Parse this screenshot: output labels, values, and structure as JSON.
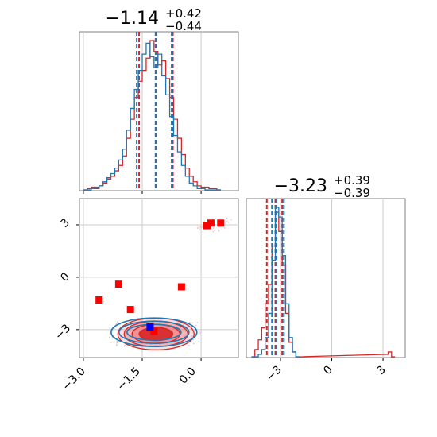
{
  "colors": {
    "red": "#d62728",
    "red_fill": "#f08080",
    "blue": "#1f77b4",
    "marker_blue": "#0000ff",
    "marker_red": "#ff0000",
    "grid": "#cccccc",
    "axes": "#808080"
  },
  "chart_data": [
    {
      "panel": "top-left",
      "type": "histogram",
      "title": {
        "main": "−1.14",
        "sup": "+0.42",
        "sub": "−0.44"
      },
      "xlim": [
        -3.1,
        0.95
      ],
      "x_ticks": [
        -3.0,
        -1.5,
        0.0
      ],
      "grid": true,
      "series": [
        {
          "color": "red",
          "dashed_lines": [
            -1.58,
            -1.14,
            -0.72
          ],
          "bins": [
            -2.95,
            -2.85,
            -2.75,
            -2.65,
            -2.55,
            -2.45,
            -2.35,
            -2.25,
            -2.15,
            -2.05,
            -1.95,
            -1.85,
            -1.75,
            -1.65,
            -1.55,
            -1.45,
            -1.35,
            -1.25,
            -1.15,
            -1.05,
            -0.95,
            -0.85,
            -0.75,
            -0.65,
            -0.55,
            -0.45,
            -0.35,
            -0.25,
            -0.15,
            -0.05,
            0.05,
            0.15,
            0.25,
            0.35,
            0.45
          ],
          "counts": [
            0,
            1,
            2,
            1,
            3,
            5,
            8,
            10,
            14,
            18,
            25,
            38,
            52,
            68,
            80,
            88,
            97,
            110,
            102,
            92,
            95,
            82,
            68,
            52,
            38,
            26,
            16,
            10,
            6,
            3,
            2,
            2,
            1,
            1,
            0
          ]
        },
        {
          "color": "blue",
          "dashed_lines": [
            -1.64,
            -1.16,
            -0.75
          ],
          "bins": [
            -2.95,
            -2.85,
            -2.75,
            -2.65,
            -2.55,
            -2.45,
            -2.35,
            -2.25,
            -2.15,
            -2.05,
            -1.95,
            -1.85,
            -1.75,
            -1.65,
            -1.55,
            -1.45,
            -1.35,
            -1.25,
            -1.15,
            -1.05,
            -0.95,
            -0.85,
            -0.75,
            -0.65,
            -0.55,
            -0.45,
            -0.35,
            -0.25,
            -0.15,
            -0.05,
            0.05,
            0.15,
            0.25,
            0.35,
            0.45
          ],
          "counts": [
            0,
            0,
            1,
            2,
            3,
            6,
            9,
            12,
            16,
            22,
            30,
            44,
            60,
            74,
            88,
            100,
            108,
            98,
            90,
            100,
            84,
            70,
            54,
            40,
            28,
            18,
            10,
            5,
            3,
            1,
            1,
            0,
            0,
            0,
            0
          ]
        }
      ]
    },
    {
      "panel": "bottom-right",
      "type": "histogram",
      "title": {
        "main": "−3.23",
        "sup": "+0.39",
        "sub": "−0.39"
      },
      "xlim": [
        -5.0,
        4.3
      ],
      "x_ticks": [
        -3,
        0,
        3
      ],
      "x_tick_labels": [
        "−3",
        "0",
        "3"
      ],
      "grid": true,
      "series": [
        {
          "color": "red",
          "dashed_lines": [
            -3.8,
            -3.3,
            -2.9
          ],
          "bins": [
            -4.6,
            -4.4,
            -4.2,
            -4.0,
            -3.8,
            -3.6,
            -3.4,
            -3.2,
            -3.0,
            -2.8,
            -2.6,
            -2.4,
            -2.2,
            -2.0,
            3.2,
            3.4,
            3.6
          ],
          "counts": [
            0,
            3,
            7,
            12,
            22,
            30,
            46,
            60,
            52,
            38,
            18,
            6,
            2,
            0,
            1,
            2,
            0
          ]
        },
        {
          "color": "blue",
          "dashed_lines": [
            -3.5,
            -3.25,
            -2.8
          ],
          "bins": [
            -4.6,
            -4.4,
            -4.2,
            -4.0,
            -3.8,
            -3.6,
            -3.4,
            -3.2,
            -3.0,
            -2.8,
            -2.6,
            -2.4,
            -2.2,
            -2.0
          ],
          "counts": [
            0,
            0,
            1,
            3,
            8,
            18,
            40,
            62,
            58,
            42,
            22,
            8,
            2,
            0
          ]
        }
      ]
    },
    {
      "panel": "bottom-left",
      "type": "contour",
      "xlim": [
        -3.1,
        0.95
      ],
      "ylim": [
        -4.6,
        4.5
      ],
      "x_ticks": [
        -3.0,
        -1.5,
        0.0
      ],
      "x_tick_labels": [
        "−3.0",
        "−1.5",
        "0.0"
      ],
      "y_ticks": [
        -3,
        0,
        3
      ],
      "y_tick_labels": [
        "−3",
        "0",
        "3"
      ],
      "grid": true,
      "red_contour_center": [
        -1.15,
        -3.25
      ],
      "blue_contour_center": [
        -1.2,
        -3.15
      ],
      "red_markers": [
        [
          -2.6,
          -1.3
        ],
        [
          -2.1,
          -0.4
        ],
        [
          -1.8,
          -1.85
        ],
        [
          -0.5,
          -0.55
        ],
        [
          -1.2,
          -3.1
        ],
        [
          0.25,
          3.1
        ],
        [
          0.5,
          3.1
        ],
        [
          0.15,
          2.95
        ]
      ],
      "blue_markers": [
        [
          -1.3,
          -2.85
        ]
      ]
    }
  ]
}
